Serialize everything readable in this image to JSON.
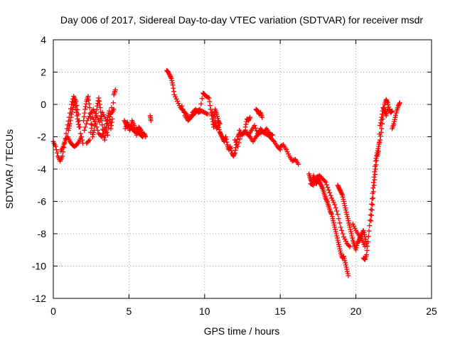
{
  "chart_data": {
    "type": "scatter",
    "title": "Day 006 of 2017, Sidereal Day-to-day VTEC variation (SDTVAR) for receiver msdr",
    "xlabel": "GPS time / hours",
    "ylabel": "SDTVAR / TECUs",
    "xlim": [
      0,
      25
    ],
    "ylim": [
      -12,
      4
    ],
    "xticks": [
      0,
      5,
      10,
      15,
      20,
      25
    ],
    "yticks": [
      -12,
      -10,
      -8,
      -6,
      -4,
      -2,
      0,
      2,
      4
    ],
    "grid": true,
    "marker": "+",
    "color": "#ff0000",
    "series": [
      {
        "name": "SDTVAR",
        "points": [
          [
            0.0,
            -2.3
          ],
          [
            0.15,
            -2.6
          ],
          [
            0.3,
            -3.2
          ],
          [
            0.45,
            -3.5
          ],
          [
            0.6,
            -3.2
          ],
          [
            0.75,
            -2.4
          ],
          [
            0.9,
            -1.5
          ],
          [
            1.05,
            -0.8
          ],
          [
            1.2,
            0.0
          ],
          [
            1.35,
            0.5
          ],
          [
            1.5,
            0.2
          ],
          [
            1.65,
            -0.6
          ],
          [
            1.8,
            -1.8
          ],
          [
            1.95,
            -2.4
          ],
          [
            0.5,
            -2.9
          ],
          [
            0.65,
            -2.6
          ],
          [
            0.8,
            -2.2
          ],
          [
            0.95,
            -2.0
          ],
          [
            1.1,
            -2.3
          ],
          [
            1.25,
            -2.5
          ],
          [
            1.4,
            -2.6
          ],
          [
            1.55,
            -2.5
          ],
          [
            1.7,
            -2.3
          ],
          [
            1.85,
            -2.0
          ],
          [
            1.0,
            -1.6
          ],
          [
            1.1,
            -1.2
          ],
          [
            1.2,
            -0.6
          ],
          [
            1.3,
            -0.2
          ],
          [
            1.4,
            0.3
          ],
          [
            1.5,
            -0.3
          ],
          [
            1.6,
            -0.9
          ],
          [
            1.7,
            -1.4
          ],
          [
            2.0,
            -1.0
          ],
          [
            2.1,
            -0.3
          ],
          [
            2.2,
            0.2
          ],
          [
            2.3,
            0.5
          ],
          [
            2.4,
            -0.2
          ],
          [
            2.5,
            -1.2
          ],
          [
            2.6,
            -2.0
          ],
          [
            2.7,
            -1.6
          ],
          [
            2.8,
            -0.8
          ],
          [
            2.9,
            -0.1
          ],
          [
            3.0,
            0.4
          ],
          [
            3.1,
            -0.2
          ],
          [
            3.2,
            -1.0
          ],
          [
            3.3,
            -1.8
          ],
          [
            3.4,
            -2.2
          ],
          [
            3.5,
            -1.4
          ],
          [
            3.6,
            -0.8
          ],
          [
            3.7,
            -0.4
          ],
          [
            3.8,
            -1.5
          ],
          [
            3.9,
            -0.9
          ],
          [
            4.0,
            0.6
          ],
          [
            4.1,
            0.9
          ],
          [
            2.2,
            -2.4
          ],
          [
            2.4,
            -2.2
          ],
          [
            2.6,
            -0.8
          ],
          [
            2.8,
            -1.2
          ],
          [
            3.0,
            -1.8
          ],
          [
            3.2,
            -2.0
          ],
          [
            3.4,
            -1.4
          ],
          [
            3.6,
            -1.9
          ],
          [
            3.8,
            -0.6
          ],
          [
            4.0,
            -0.3
          ],
          [
            2.05,
            -1.6
          ],
          [
            2.25,
            -1.0
          ],
          [
            2.45,
            -0.6
          ],
          [
            2.65,
            -0.3
          ],
          [
            2.85,
            -0.7
          ],
          [
            3.05,
            -1.1
          ],
          [
            3.25,
            -0.5
          ],
          [
            3.45,
            -0.9
          ],
          [
            3.65,
            -1.3
          ],
          [
            3.85,
            -0.2
          ],
          [
            4.7,
            -1.0
          ],
          [
            4.8,
            -1.2
          ],
          [
            4.9,
            -1.4
          ],
          [
            5.0,
            -1.3
          ],
          [
            5.1,
            -1.5
          ],
          [
            5.2,
            -1.4
          ],
          [
            5.3,
            -1.6
          ],
          [
            5.4,
            -1.7
          ],
          [
            5.5,
            -1.5
          ],
          [
            5.6,
            -1.6
          ],
          [
            5.7,
            -1.8
          ],
          [
            5.8,
            -1.9
          ],
          [
            5.9,
            -2.0
          ],
          [
            6.0,
            -1.8
          ],
          [
            6.1,
            -2.0
          ],
          [
            4.75,
            -1.5
          ],
          [
            4.9,
            -1.1
          ],
          [
            5.05,
            -1.6
          ],
          [
            5.2,
            -1.0
          ],
          [
            5.35,
            -1.3
          ],
          [
            5.5,
            -1.9
          ],
          [
            5.65,
            -1.4
          ],
          [
            5.8,
            -1.6
          ],
          [
            5.95,
            -1.9
          ],
          [
            6.4,
            -0.7
          ],
          [
            6.45,
            -1.0
          ],
          [
            7.5,
            2.1
          ],
          [
            7.6,
            2.0
          ],
          [
            7.7,
            1.8
          ],
          [
            7.8,
            1.6
          ],
          [
            7.9,
            1.2
          ],
          [
            8.0,
            0.6
          ],
          [
            8.2,
            0.2
          ],
          [
            8.4,
            -0.2
          ],
          [
            8.6,
            -0.4
          ],
          [
            8.8,
            -0.6
          ],
          [
            9.0,
            -0.9
          ],
          [
            9.2,
            -0.5
          ],
          [
            9.4,
            -0.3
          ],
          [
            9.6,
            -0.5
          ],
          [
            9.8,
            -0.4
          ],
          [
            10.0,
            -0.5
          ],
          [
            10.2,
            -0.6
          ],
          [
            8.5,
            -0.1
          ],
          [
            8.7,
            -0.7
          ],
          [
            8.9,
            -1.0
          ],
          [
            9.1,
            -0.8
          ],
          [
            9.3,
            -0.6
          ],
          [
            9.5,
            -0.4
          ],
          [
            9.7,
            -0.3
          ],
          [
            9.9,
            0.7
          ],
          [
            10.0,
            0.6
          ],
          [
            10.1,
            0.5
          ],
          [
            10.3,
            0.4
          ],
          [
            10.4,
            -0.3
          ],
          [
            10.5,
            -0.9
          ],
          [
            10.6,
            -1.4
          ],
          [
            10.7,
            -1.0
          ],
          [
            10.8,
            -1.5
          ],
          [
            10.9,
            -1.3
          ],
          [
            11.0,
            -1.7
          ],
          [
            11.1,
            -1.9
          ],
          [
            11.2,
            -2.1
          ],
          [
            11.3,
            -2.3
          ],
          [
            11.4,
            -2.0
          ],
          [
            11.5,
            -2.5
          ],
          [
            11.6,
            -2.8
          ],
          [
            11.7,
            -2.6
          ],
          [
            11.8,
            -3.0
          ],
          [
            11.9,
            -3.2
          ],
          [
            12.0,
            -3.0
          ],
          [
            12.1,
            -2.5
          ],
          [
            12.2,
            -2.0
          ],
          [
            12.3,
            -1.8
          ],
          [
            10.5,
            -0.5
          ],
          [
            10.6,
            -0.8
          ],
          [
            10.7,
            -0.3
          ],
          [
            10.8,
            -0.6
          ],
          [
            10.9,
            -1.0
          ],
          [
            11.0,
            -1.2
          ],
          [
            12.0,
            -2.2
          ],
          [
            12.2,
            -2.6
          ],
          [
            12.4,
            -1.9
          ],
          [
            12.6,
            -1.7
          ],
          [
            12.8,
            -1.8
          ],
          [
            13.0,
            -2.0
          ],
          [
            13.2,
            -2.3
          ],
          [
            13.4,
            -2.0
          ],
          [
            13.6,
            -1.8
          ],
          [
            13.8,
            -1.7
          ],
          [
            14.0,
            -1.8
          ],
          [
            14.2,
            -1.9
          ],
          [
            14.4,
            -2.1
          ],
          [
            14.6,
            -2.3
          ],
          [
            14.8,
            -2.6
          ],
          [
            15.0,
            -2.8
          ],
          [
            12.3,
            -1.6
          ],
          [
            12.5,
            -1.9
          ],
          [
            12.7,
            -1.6
          ],
          [
            12.9,
            -1.9
          ],
          [
            13.1,
            -1.6
          ],
          [
            13.3,
            -1.3
          ],
          [
            13.5,
            -1.8
          ],
          [
            13.7,
            -1.5
          ],
          [
            13.9,
            -1.7
          ],
          [
            14.1,
            -1.5
          ],
          [
            14.3,
            -1.8
          ],
          [
            14.5,
            -1.9
          ],
          [
            12.7,
            -1.4
          ],
          [
            12.8,
            -0.9
          ],
          [
            12.9,
            -1.0
          ],
          [
            13.0,
            -0.8
          ],
          [
            13.4,
            -0.3
          ],
          [
            13.5,
            -0.4
          ],
          [
            13.6,
            -0.6
          ],
          [
            13.7,
            -0.5
          ],
          [
            13.8,
            -0.8
          ],
          [
            15.0,
            -2.6
          ],
          [
            15.2,
            -2.5
          ],
          [
            15.4,
            -2.8
          ],
          [
            15.6,
            -3.2
          ],
          [
            15.8,
            -3.5
          ],
          [
            16.0,
            -3.4
          ],
          [
            16.2,
            -3.7
          ],
          [
            16.9,
            -4.3
          ],
          [
            17.0,
            -4.6
          ],
          [
            17.1,
            -4.8
          ],
          [
            17.2,
            -4.4
          ],
          [
            17.3,
            -4.7
          ],
          [
            17.4,
            -4.9
          ],
          [
            17.5,
            -4.6
          ],
          [
            17.6,
            -4.8
          ],
          [
            17.7,
            -5.0
          ],
          [
            17.8,
            -5.2
          ],
          [
            17.9,
            -5.5
          ],
          [
            18.0,
            -5.8
          ],
          [
            18.1,
            -6.0
          ],
          [
            18.2,
            -6.3
          ],
          [
            18.3,
            -6.6
          ],
          [
            18.4,
            -6.8
          ],
          [
            18.5,
            -7.2
          ],
          [
            18.6,
            -7.6
          ],
          [
            18.7,
            -8.0
          ],
          [
            18.8,
            -8.4
          ],
          [
            18.9,
            -8.8
          ],
          [
            19.0,
            -9.2
          ],
          [
            19.1,
            -9.5
          ],
          [
            19.2,
            -9.4
          ],
          [
            19.3,
            -9.8
          ],
          [
            19.4,
            -10.2
          ],
          [
            19.5,
            -10.6
          ],
          [
            17.0,
            -4.9
          ],
          [
            17.2,
            -5.0
          ],
          [
            17.4,
            -4.5
          ],
          [
            17.6,
            -4.4
          ],
          [
            17.8,
            -4.6
          ],
          [
            18.0,
            -4.8
          ],
          [
            18.2,
            -5.3
          ],
          [
            18.4,
            -5.8
          ],
          [
            18.6,
            -6.2
          ],
          [
            18.8,
            -6.8
          ],
          [
            19.0,
            -7.6
          ],
          [
            19.2,
            -8.2
          ],
          [
            19.4,
            -8.6
          ],
          [
            19.6,
            -8.8
          ],
          [
            18.8,
            -5.0
          ],
          [
            18.9,
            -5.2
          ],
          [
            19.0,
            -5.4
          ],
          [
            19.1,
            -5.6
          ],
          [
            19.2,
            -6.0
          ],
          [
            19.3,
            -6.4
          ],
          [
            19.4,
            -6.8
          ],
          [
            19.5,
            -7.2
          ],
          [
            19.6,
            -7.6
          ],
          [
            19.7,
            -8.0
          ],
          [
            19.8,
            -8.4
          ],
          [
            19.9,
            -8.7
          ],
          [
            20.0,
            -9.0
          ],
          [
            20.1,
            -8.6
          ],
          [
            20.2,
            -8.4
          ],
          [
            20.3,
            -8.2
          ],
          [
            20.4,
            -8.0
          ],
          [
            20.5,
            -7.8
          ],
          [
            20.6,
            -8.2
          ],
          [
            20.7,
            -8.6
          ],
          [
            19.8,
            -7.4
          ],
          [
            20.0,
            -7.8
          ],
          [
            20.2,
            -8.1
          ],
          [
            20.4,
            -8.4
          ],
          [
            20.6,
            -8.8
          ],
          [
            20.5,
            -9.5
          ],
          [
            20.6,
            -9.6
          ],
          [
            20.7,
            -9.3
          ],
          [
            20.8,
            -8.5
          ],
          [
            20.9,
            -7.5
          ],
          [
            21.0,
            -6.5
          ],
          [
            21.1,
            -5.5
          ],
          [
            21.2,
            -4.5
          ],
          [
            21.3,
            -3.5
          ],
          [
            21.4,
            -3.0
          ],
          [
            21.5,
            -2.6
          ],
          [
            21.6,
            -2.2
          ],
          [
            21.7,
            -1.5
          ],
          [
            21.8,
            -0.6
          ],
          [
            21.9,
            0.0
          ],
          [
            22.0,
            0.3
          ],
          [
            22.1,
            0.1
          ],
          [
            22.2,
            -0.3
          ],
          [
            22.3,
            -0.5
          ],
          [
            22.4,
            -0.4
          ],
          [
            21.0,
            -7.2
          ],
          [
            21.1,
            -6.2
          ],
          [
            21.2,
            -5.0
          ],
          [
            21.3,
            -4.0
          ],
          [
            21.4,
            -3.2
          ],
          [
            21.5,
            -2.9
          ],
          [
            21.6,
            -1.3
          ],
          [
            21.7,
            -0.8
          ],
          [
            21.8,
            -0.2
          ],
          [
            21.9,
            -0.4
          ],
          [
            22.0,
            -0.7
          ],
          [
            22.1,
            -0.3
          ],
          [
            22.4,
            -1.5
          ],
          [
            22.5,
            -1.2
          ],
          [
            22.6,
            -0.8
          ],
          [
            22.7,
            -0.4
          ],
          [
            22.8,
            -0.1
          ],
          [
            22.9,
            0.1
          ]
        ]
      }
    ]
  }
}
